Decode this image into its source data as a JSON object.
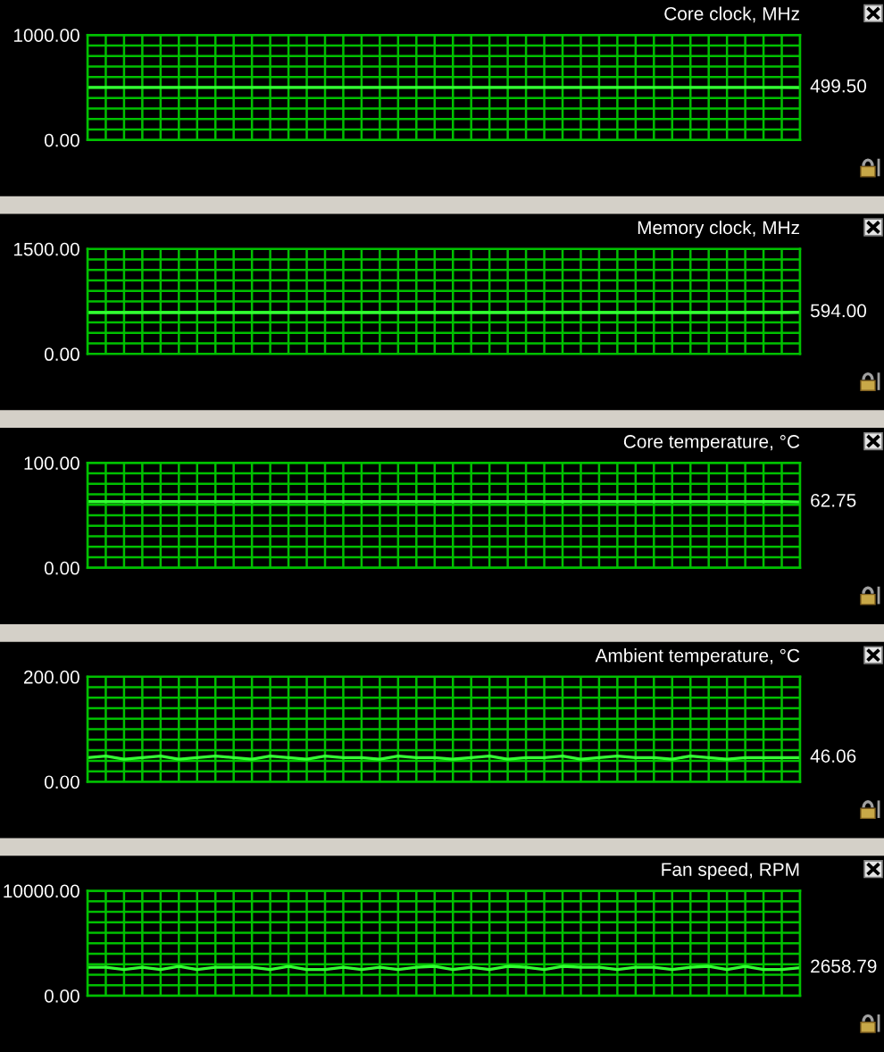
{
  "chart_data": [
    {
      "type": "line",
      "title": "Core clock, MHz",
      "categories": [
        null,
        null,
        null,
        null,
        null,
        null,
        null,
        null,
        null,
        null,
        null,
        null,
        null,
        null,
        null,
        null,
        null,
        null,
        null,
        null,
        null,
        null,
        null,
        null,
        null,
        null,
        null,
        null,
        null,
        null,
        null,
        null,
        null,
        null,
        null,
        null,
        null,
        null,
        null,
        null
      ],
      "color": "#33ff33",
      "values": [
        500,
        500,
        500,
        500,
        500,
        500,
        500,
        500,
        500,
        500,
        500,
        500,
        500,
        500,
        500,
        500,
        500,
        500,
        500,
        500,
        500,
        500,
        500,
        500,
        500,
        500,
        500,
        500,
        500,
        500,
        500,
        500,
        500,
        500,
        500,
        500,
        500,
        500,
        500,
        499.5
      ],
      "value_labels": [
        null,
        null,
        null,
        null,
        null,
        null,
        null,
        null,
        null,
        null,
        null,
        null,
        null,
        null,
        null,
        null,
        null,
        null,
        null,
        null,
        null,
        null,
        null,
        null,
        null,
        null,
        null,
        null,
        null,
        null,
        null,
        null,
        null,
        null,
        null,
        null,
        null,
        null,
        null,
        "499.50"
      ],
      "ylim": [
        0,
        1000
      ],
      "yticks": [
        {
          "value": 0,
          "label": "0.00"
        },
        {
          "value": 100,
          "label": null
        },
        {
          "value": 200,
          "label": null
        },
        {
          "value": 300,
          "label": null
        },
        {
          "value": 400,
          "label": null
        },
        {
          "value": 500,
          "label": null
        },
        {
          "value": 600,
          "label": null
        },
        {
          "value": 700,
          "label": null
        },
        {
          "value": 800,
          "label": null
        },
        {
          "value": 900,
          "label": null
        },
        {
          "value": 1000,
          "label": "1000.00"
        }
      ],
      "grid": true,
      "tick_labels": "y",
      "line_style": "solid"
    },
    {
      "type": "line",
      "title": "Memory clock, MHz",
      "categories": [
        null,
        null,
        null,
        null,
        null,
        null,
        null,
        null,
        null,
        null,
        null,
        null,
        null,
        null,
        null,
        null,
        null,
        null,
        null,
        null,
        null,
        null,
        null,
        null,
        null,
        null,
        null,
        null,
        null,
        null,
        null,
        null,
        null,
        null,
        null,
        null,
        null,
        null,
        null,
        null
      ],
      "color": "#33ff33",
      "values": [
        590,
        590,
        590,
        590,
        590,
        590,
        590,
        590,
        590,
        590,
        590,
        590,
        590,
        590,
        590,
        590,
        590,
        590,
        590,
        590,
        590,
        590,
        590,
        590,
        590,
        590,
        590,
        590,
        590,
        590,
        590,
        590,
        590,
        590,
        590,
        590,
        590,
        590,
        590,
        594
      ],
      "value_labels": [
        null,
        null,
        null,
        null,
        null,
        null,
        null,
        null,
        null,
        null,
        null,
        null,
        null,
        null,
        null,
        null,
        null,
        null,
        null,
        null,
        null,
        null,
        null,
        null,
        null,
        null,
        null,
        null,
        null,
        null,
        null,
        null,
        null,
        null,
        null,
        null,
        null,
        null,
        null,
        "594.00"
      ],
      "ylim": [
        0,
        1500
      ],
      "yticks": [
        {
          "value": 0,
          "label": "0.00"
        },
        {
          "value": 150,
          "label": null
        },
        {
          "value": 300,
          "label": null
        },
        {
          "value": 450,
          "label": null
        },
        {
          "value": 600,
          "label": null
        },
        {
          "value": 750,
          "label": null
        },
        {
          "value": 900,
          "label": null
        },
        {
          "value": 1050,
          "label": null
        },
        {
          "value": 1200,
          "label": null
        },
        {
          "value": 1350,
          "label": null
        },
        {
          "value": 1500,
          "label": "1500.00"
        }
      ],
      "grid": true,
      "tick_labels": "y",
      "line_style": "solid"
    },
    {
      "type": "line",
      "title": "Core temperature, °C",
      "categories": [
        null,
        null,
        null,
        null,
        null,
        null,
        null,
        null,
        null,
        null,
        null,
        null,
        null,
        null,
        null,
        null,
        null,
        null,
        null,
        null,
        null,
        null,
        null,
        null,
        null,
        null,
        null,
        null,
        null,
        null,
        null,
        null,
        null,
        null,
        null,
        null,
        null,
        null,
        null,
        null
      ],
      "color": "#33ff33",
      "values": [
        63,
        63,
        63,
        63,
        63,
        63,
        63,
        63,
        63,
        63,
        63,
        63,
        63,
        63,
        63,
        63,
        63,
        63,
        63,
        63,
        63,
        63,
        63,
        63,
        63,
        63,
        63,
        63,
        63,
        63,
        63,
        63,
        63,
        63,
        63,
        63,
        63,
        63,
        63,
        62.75
      ],
      "value_labels": [
        null,
        null,
        null,
        null,
        null,
        null,
        null,
        null,
        null,
        null,
        null,
        null,
        null,
        null,
        null,
        null,
        null,
        null,
        null,
        null,
        null,
        null,
        null,
        null,
        null,
        null,
        null,
        null,
        null,
        null,
        null,
        null,
        null,
        null,
        null,
        null,
        null,
        null,
        null,
        "62.75"
      ],
      "ylim": [
        0,
        100
      ],
      "yticks": [
        {
          "value": 0,
          "label": "0.00"
        },
        {
          "value": 10,
          "label": null
        },
        {
          "value": 20,
          "label": null
        },
        {
          "value": 30,
          "label": null
        },
        {
          "value": 40,
          "label": null
        },
        {
          "value": 50,
          "label": null
        },
        {
          "value": 60,
          "label": null
        },
        {
          "value": 70,
          "label": null
        },
        {
          "value": 80,
          "label": null
        },
        {
          "value": 90,
          "label": null
        },
        {
          "value": 100,
          "label": "100.00"
        }
      ],
      "grid": true,
      "tick_labels": "y",
      "line_style": "solid"
    },
    {
      "type": "line",
      "title": "Ambient temperature, °C",
      "categories": [
        null,
        null,
        null,
        null,
        null,
        null,
        null,
        null,
        null,
        null,
        null,
        null,
        null,
        null,
        null,
        null,
        null,
        null,
        null,
        null,
        null,
        null,
        null,
        null,
        null,
        null,
        null,
        null,
        null,
        null,
        null,
        null,
        null,
        null,
        null,
        null,
        null,
        null,
        null,
        null
      ],
      "color": "#33ff33",
      "values": [
        46,
        49,
        43,
        46,
        49,
        43,
        46,
        49,
        46,
        43,
        49,
        46,
        43,
        49,
        46,
        46,
        43,
        49,
        46,
        46,
        43,
        46,
        49,
        43,
        46,
        46,
        49,
        43,
        46,
        49,
        46,
        46,
        43,
        49,
        46,
        43,
        46,
        46,
        46,
        46.06
      ],
      "value_labels": [
        null,
        null,
        null,
        null,
        null,
        null,
        null,
        null,
        null,
        null,
        null,
        null,
        null,
        null,
        null,
        null,
        null,
        null,
        null,
        null,
        null,
        null,
        null,
        null,
        null,
        null,
        null,
        null,
        null,
        null,
        null,
        null,
        null,
        null,
        null,
        null,
        null,
        null,
        null,
        "46.06"
      ],
      "ylim": [
        0,
        200
      ],
      "yticks": [
        {
          "value": 0,
          "label": "0.00"
        },
        {
          "value": 20,
          "label": null
        },
        {
          "value": 40,
          "label": null
        },
        {
          "value": 60,
          "label": null
        },
        {
          "value": 80,
          "label": null
        },
        {
          "value": 100,
          "label": null
        },
        {
          "value": 120,
          "label": null
        },
        {
          "value": 140,
          "label": null
        },
        {
          "value": 160,
          "label": null
        },
        {
          "value": 180,
          "label": null
        },
        {
          "value": 200,
          "label": "200.00"
        }
      ],
      "grid": true,
      "tick_labels": "y",
      "line_style": "solid"
    },
    {
      "type": "line",
      "title": "Fan speed, RPM",
      "categories": [
        null,
        null,
        null,
        null,
        null,
        null,
        null,
        null,
        null,
        null,
        null,
        null,
        null,
        null,
        null,
        null,
        null,
        null,
        null,
        null,
        null,
        null,
        null,
        null,
        null,
        null,
        null,
        null,
        null,
        null,
        null,
        null,
        null,
        null,
        null,
        null,
        null,
        null,
        null,
        null
      ],
      "color": "#33ff33",
      "values": [
        2700,
        2700,
        2500,
        2700,
        2500,
        2800,
        2500,
        2700,
        2700,
        2700,
        2500,
        2800,
        2500,
        2500,
        2700,
        2500,
        2700,
        2500,
        2700,
        2800,
        2500,
        2700,
        2500,
        2800,
        2700,
        2500,
        2800,
        2700,
        2700,
        2500,
        2700,
        2700,
        2500,
        2700,
        2800,
        2500,
        2800,
        2500,
        2500,
        2658.79
      ],
      "value_labels": [
        null,
        null,
        null,
        null,
        null,
        null,
        null,
        null,
        null,
        null,
        null,
        null,
        null,
        null,
        null,
        null,
        null,
        null,
        null,
        null,
        null,
        null,
        null,
        null,
        null,
        null,
        null,
        null,
        null,
        null,
        null,
        null,
        null,
        null,
        null,
        null,
        null,
        null,
        null,
        "2658.79"
      ],
      "ylim": [
        0,
        10000
      ],
      "yticks": [
        {
          "value": 0,
          "label": "0.00"
        },
        {
          "value": 1000,
          "label": null
        },
        {
          "value": 2000,
          "label": null
        },
        {
          "value": 3000,
          "label": null
        },
        {
          "value": 4000,
          "label": null
        },
        {
          "value": 5000,
          "label": null
        },
        {
          "value": 6000,
          "label": null
        },
        {
          "value": 7000,
          "label": null
        },
        {
          "value": 8000,
          "label": null
        },
        {
          "value": 9000,
          "label": null
        },
        {
          "value": 10000,
          "label": "10000.00"
        }
      ],
      "grid": true,
      "tick_labels": "y",
      "line_style": "solid"
    }
  ]
}
